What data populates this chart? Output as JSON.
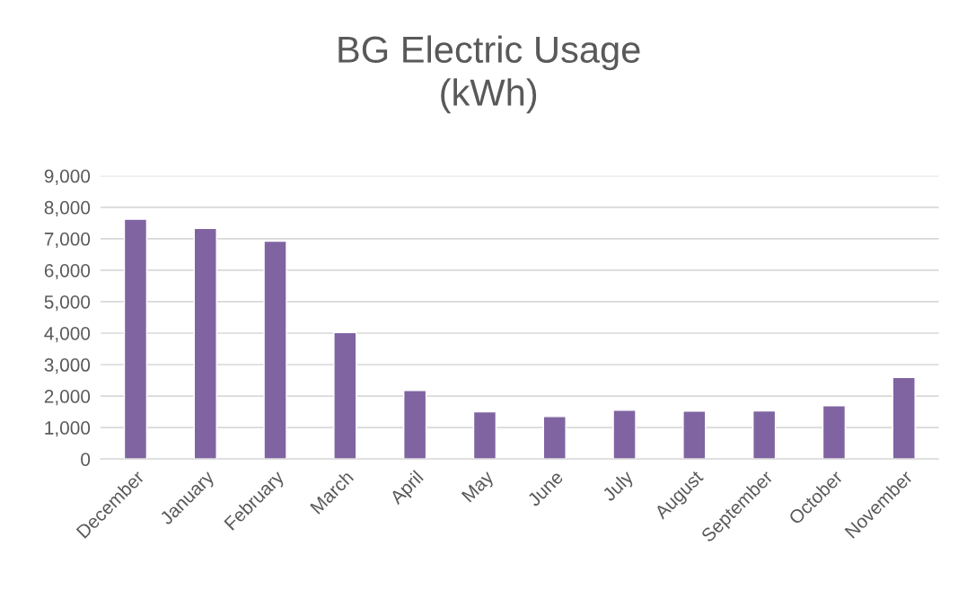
{
  "chart_data": {
    "type": "bar",
    "title": "BG Electric Usage\n(kWh)",
    "categories": [
      "December",
      "January",
      "February",
      "March",
      "April",
      "May",
      "June",
      "July",
      "August",
      "September",
      "October",
      "November"
    ],
    "values": [
      7620,
      7330,
      6920,
      4020,
      2180,
      1500,
      1350,
      1550,
      1520,
      1530,
      1690,
      2590
    ],
    "color": "#8064a2",
    "ylim": [
      0,
      9000
    ],
    "yticks": [
      {
        "value": 0,
        "label": "0"
      },
      {
        "value": 1000,
        "label": "1,000"
      },
      {
        "value": 2000,
        "label": "2,000"
      },
      {
        "value": 3000,
        "label": "3,000"
      },
      {
        "value": 4000,
        "label": "4,000"
      },
      {
        "value": 5000,
        "label": "5,000"
      },
      {
        "value": 6000,
        "label": "6,000"
      },
      {
        "value": 7000,
        "label": "7,000"
      },
      {
        "value": 8000,
        "label": "8,000"
      },
      {
        "value": 9000,
        "label": "9,000"
      }
    ],
    "grid": "y"
  }
}
